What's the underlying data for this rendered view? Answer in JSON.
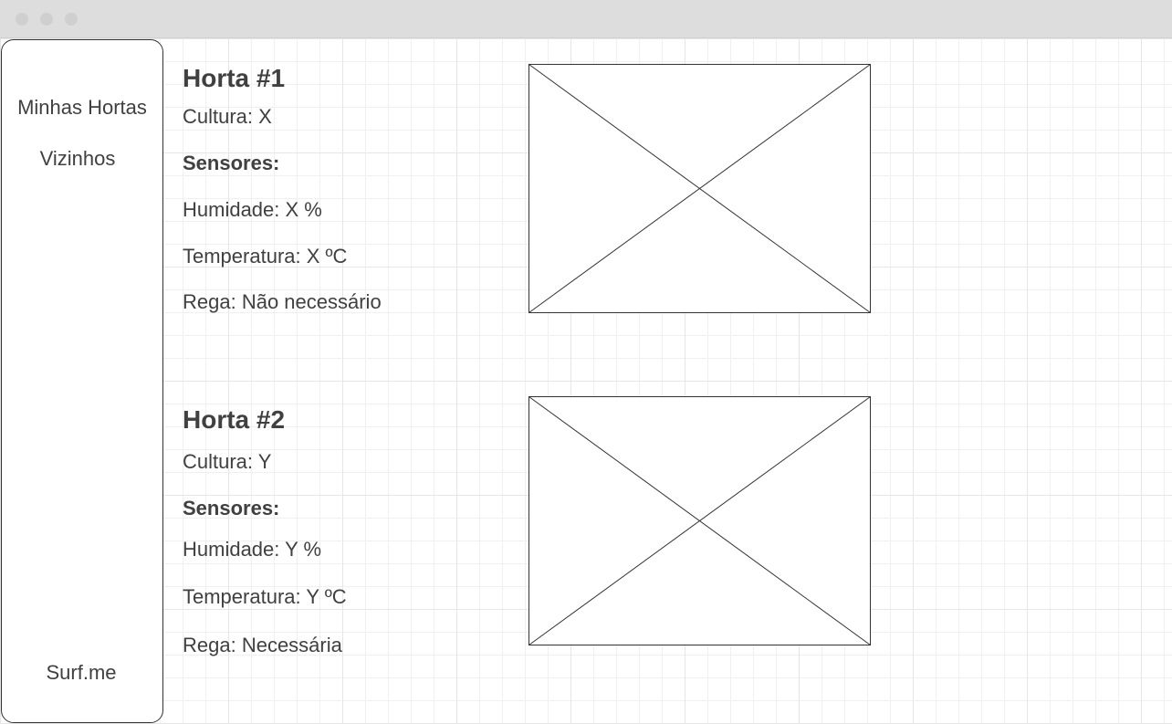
{
  "sidebar": {
    "items": [
      {
        "label": "Minhas Hortas"
      },
      {
        "label": "Vizinhos"
      }
    ],
    "brand": "Surf.me"
  },
  "hortas": [
    {
      "title": "Horta #1",
      "cultura": "Cultura: X",
      "sensores_label": "Sensores:",
      "humidade": "Humidade: X %",
      "temperatura": "Temperatura: X ºC",
      "rega": "Rega: Não necessário"
    },
    {
      "title": "Horta #2",
      "cultura": "Cultura: Y",
      "sensores_label": "Sensores:",
      "humidade": "Humidade: Y %",
      "temperatura": "Temperatura: Y ºC",
      "rega": "Rega: Necessária"
    }
  ]
}
